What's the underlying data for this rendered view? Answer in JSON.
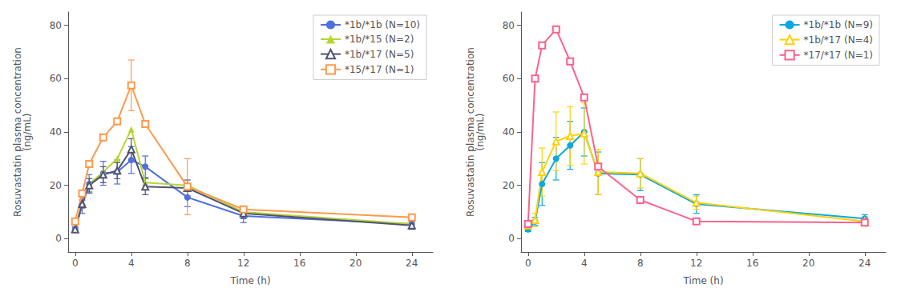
{
  "chart_data": [
    {
      "type": "line",
      "xlabel": "Time (h)",
      "ylabel": "Rosuvastatin plasma concentration\n(ng/mL)",
      "xlim": [
        -0.5,
        25.5
      ],
      "xticks": [
        0,
        4,
        8,
        12,
        16,
        20,
        24
      ],
      "ylim": [
        -5,
        85
      ],
      "yticks": [
        0,
        20,
        40,
        60,
        80
      ],
      "grid": false,
      "legend": "upper right",
      "x": [
        0,
        0.5,
        1,
        2,
        3,
        4,
        5,
        8,
        12,
        24
      ],
      "series": [
        {
          "name": "*1b/*1b (N=10)",
          "marker": "circle",
          "values": [
            3.5,
            12.5,
            20.5,
            24.5,
            25.0,
            29.5,
            27.0,
            15.5,
            8.5,
            5.5
          ],
          "yerr": [
            1.0,
            3.0,
            3.5,
            4.5,
            4.5,
            5.0,
            4.0,
            3.5,
            2.5,
            1.5
          ]
        },
        {
          "name": "*1b/*15 (N=2)",
          "marker": "triangle",
          "values": [
            4.0,
            13.0,
            20.5,
            25.0,
            30.0,
            41.0,
            21.0,
            20.0,
            10.0,
            5.5
          ],
          "yerr": [
            0,
            0,
            0,
            0,
            0,
            0,
            0,
            0,
            0,
            0
          ]
        },
        {
          "name": "*1b/*17 (N=5)",
          "marker": "open triangle",
          "values": [
            3.5,
            13.0,
            20.0,
            24.0,
            25.5,
            33.5,
            19.5,
            19.0,
            9.5,
            5.0
          ],
          "yerr": [
            0.5,
            1.5,
            2.5,
            3.0,
            3.0,
            4.0,
            3.0,
            3.0,
            2.0,
            1.5
          ]
        },
        {
          "name": "*15/*17 (N=1)",
          "marker": "open square",
          "values": [
            6.5,
            17.0,
            28.0,
            38.0,
            44.0,
            57.5,
            43.0,
            19.5,
            11.0,
            8.0
          ],
          "yerr": [
            0,
            0,
            0,
            0,
            0,
            9.5,
            0,
            10.5,
            0,
            0
          ]
        }
      ]
    },
    {
      "type": "line",
      "xlabel": "Time (h)",
      "ylabel": "Rosuvastatin plasma concentration\n(ng/mL)",
      "xlim": [
        -0.5,
        25.5
      ],
      "xticks": [
        0,
        4,
        8,
        12,
        16,
        20,
        24
      ],
      "ylim": [
        -5,
        85
      ],
      "yticks": [
        0,
        20,
        40,
        60,
        80
      ],
      "grid": false,
      "legend": "upper right",
      "x": [
        0,
        0.5,
        1,
        2,
        3,
        4,
        5,
        8,
        12,
        24
      ],
      "series": [
        {
          "name": "*1b/*1b (N=9)",
          "marker": "circle",
          "values": [
            3.5,
            6.5,
            20.5,
            30.0,
            35.0,
            40.0,
            24.5,
            24.0,
            13.0,
            7.5
          ],
          "yerr": [
            0.8,
            1.5,
            8.0,
            8.0,
            9.0,
            9.0,
            8.0,
            6.0,
            3.5,
            1.5
          ]
        },
        {
          "name": "*1b/*17 (N=4)",
          "marker": "open triangle",
          "values": [
            5.0,
            7.0,
            25.0,
            36.5,
            38.5,
            39.5,
            25.0,
            24.5,
            13.5,
            6.5
          ],
          "yerr": [
            1.0,
            2.5,
            9.0,
            11.0,
            11.0,
            11.5,
            8.5,
            5.5,
            2.5,
            1.5
          ]
        },
        {
          "name": "*17/*17 (N=1)",
          "marker": "open square",
          "values": [
            5.5,
            60.0,
            72.5,
            78.5,
            66.5,
            53.0,
            27.0,
            14.5,
            6.5,
            6.0
          ],
          "yerr": [
            0,
            0,
            0,
            0,
            0,
            0,
            0,
            0,
            0,
            0
          ]
        }
      ]
    }
  ]
}
